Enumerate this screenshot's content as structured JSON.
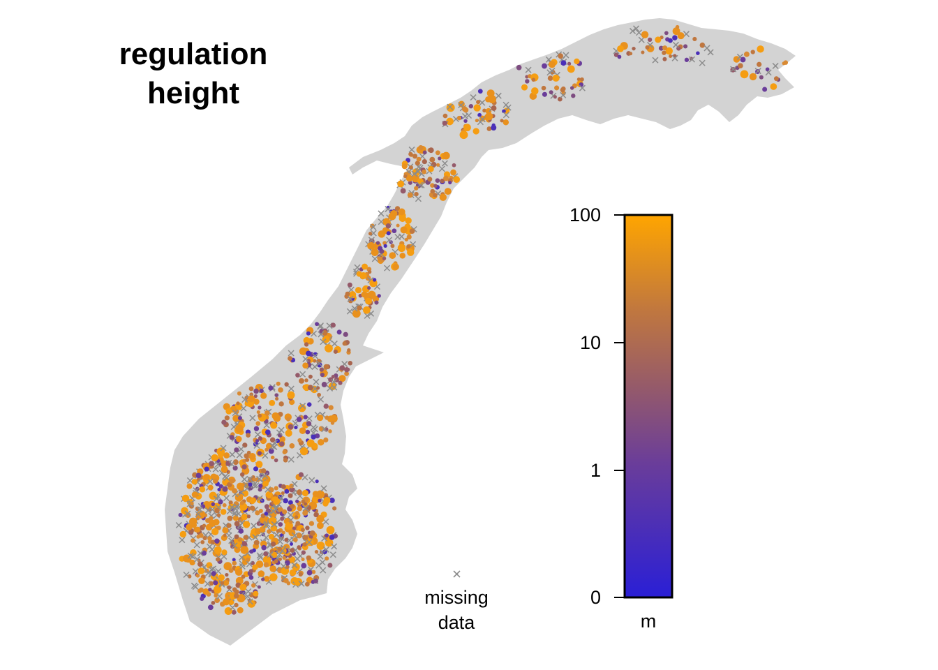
{
  "title": {
    "line1": "regulation",
    "line2": "height"
  },
  "legend": {
    "missing_line1": "missing",
    "missing_line2": "data",
    "missing_marker_color": "#8c8c8c"
  },
  "colorbar": {
    "scale": "log-like",
    "ticks": [
      "100",
      "10",
      "1",
      "0"
    ],
    "tick_values": [
      100,
      10,
      1,
      0
    ],
    "unit": "m",
    "color_low": "#2a1fd6",
    "color_mid": "#8d5a78",
    "color_high": "#ffa500"
  },
  "colors": {
    "land": "#d3d3d3",
    "missing": "#8c8c8c"
  }
}
